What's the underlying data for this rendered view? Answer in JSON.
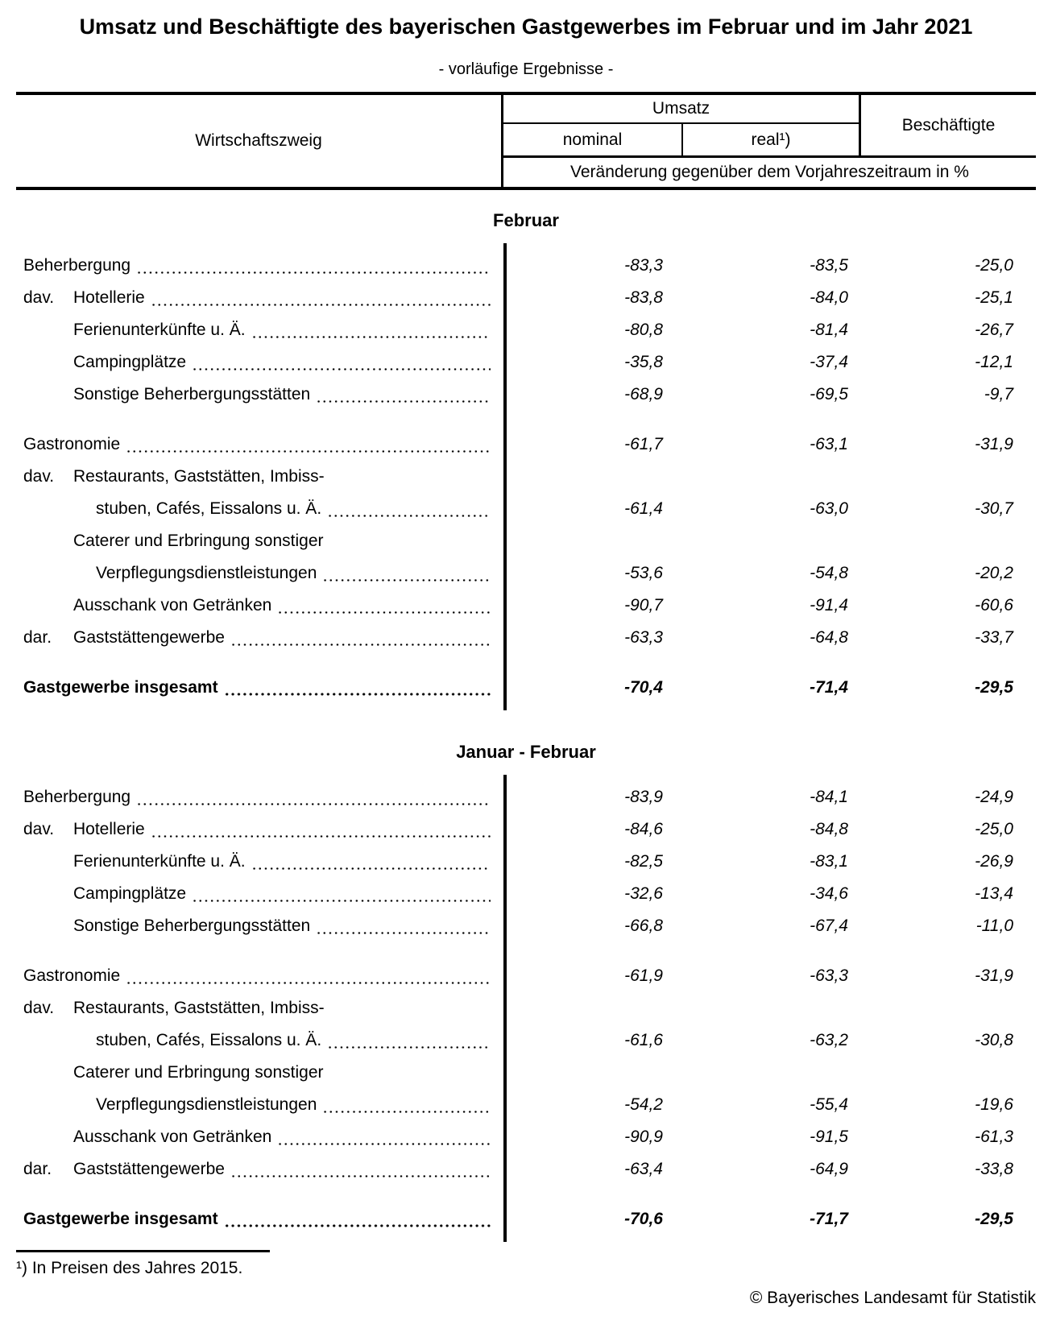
{
  "title": "Umsatz und Beschäftigte des bayerischen Gastgewerbes im Februar und im Jahr 2021",
  "subtitle": "- vorläufige Ergebnisse -",
  "table": {
    "header": {
      "branch": "Wirtschaftszweig",
      "umsatz": "Umsatz",
      "nominal": "nominal",
      "real": "real¹)",
      "beschaeftigte": "Beschäftigte",
      "change_note": "Veränderung gegenüber dem Vorjahreszeitraum in %"
    }
  },
  "sections": [
    {
      "heading": "Februar",
      "rows": [
        {
          "prefix": "",
          "indent": 0,
          "label": "Beherbergung",
          "dots": true,
          "gap": false,
          "bold": false,
          "nominal": "-83,3",
          "real": "-83,5",
          "besch": "-25,0"
        },
        {
          "prefix": "dav.",
          "indent": 1,
          "label": "Hotellerie",
          "dots": true,
          "gap": false,
          "bold": false,
          "nominal": "-83,8",
          "real": "-84,0",
          "besch": "-25,1"
        },
        {
          "prefix": "",
          "indent": 1,
          "label": "Ferienunterkünfte u. Ä.",
          "dots": true,
          "gap": false,
          "bold": false,
          "nominal": "-80,8",
          "real": "-81,4",
          "besch": "-26,7"
        },
        {
          "prefix": "",
          "indent": 1,
          "label": "Campingplätze",
          "dots": true,
          "gap": false,
          "bold": false,
          "nominal": "-35,8",
          "real": "-37,4",
          "besch": "-12,1"
        },
        {
          "prefix": "",
          "indent": 1,
          "label": "Sonstige Beherbergungsstätten",
          "dots": true,
          "gap": false,
          "bold": false,
          "nominal": "-68,9",
          "real": "-69,5",
          "besch": "-9,7"
        },
        {
          "prefix": "",
          "indent": 0,
          "label": "Gastronomie",
          "dots": true,
          "gap": true,
          "bold": false,
          "nominal": "-61,7",
          "real": "-63,1",
          "besch": "-31,9"
        },
        {
          "prefix": "dav.",
          "indent": 1,
          "label": "Restaurants, Gaststätten, Imbiss-",
          "dots": false,
          "gap": false,
          "bold": false,
          "nominal": "",
          "real": "",
          "besch": ""
        },
        {
          "prefix": "",
          "indent": 2,
          "label": "stuben, Cafés, Eissalons u. Ä.",
          "dots": true,
          "gap": false,
          "bold": false,
          "nominal": "-61,4",
          "real": "-63,0",
          "besch": "-30,7"
        },
        {
          "prefix": "",
          "indent": 1,
          "label": "Caterer und Erbringung sonstiger",
          "dots": false,
          "gap": false,
          "bold": false,
          "nominal": "",
          "real": "",
          "besch": ""
        },
        {
          "prefix": "",
          "indent": 2,
          "label": "Verpflegungsdienstleistungen",
          "dots": true,
          "gap": false,
          "bold": false,
          "nominal": "-53,6",
          "real": "-54,8",
          "besch": "-20,2"
        },
        {
          "prefix": "",
          "indent": 1,
          "label": "Ausschank von Getränken",
          "dots": true,
          "gap": false,
          "bold": false,
          "nominal": "-90,7",
          "real": "-91,4",
          "besch": "-60,6"
        },
        {
          "prefix": "dar.",
          "indent": 1,
          "label": "Gaststättengewerbe",
          "dots": true,
          "gap": false,
          "bold": false,
          "nominal": "-63,3",
          "real": "-64,8",
          "besch": "-33,7"
        },
        {
          "prefix": "",
          "indent": 0,
          "label": "Gastgewerbe insgesamt",
          "dots": true,
          "gap": true,
          "bold": true,
          "nominal": "-70,4",
          "real": "-71,4",
          "besch": "-29,5"
        }
      ]
    },
    {
      "heading": "Januar - Februar",
      "rows": [
        {
          "prefix": "",
          "indent": 0,
          "label": "Beherbergung",
          "dots": true,
          "gap": false,
          "bold": false,
          "nominal": "-83,9",
          "real": "-84,1",
          "besch": "-24,9"
        },
        {
          "prefix": "dav.",
          "indent": 1,
          "label": "Hotellerie",
          "dots": true,
          "gap": false,
          "bold": false,
          "nominal": "-84,6",
          "real": "-84,8",
          "besch": "-25,0"
        },
        {
          "prefix": "",
          "indent": 1,
          "label": "Ferienunterkünfte u. Ä.",
          "dots": true,
          "gap": false,
          "bold": false,
          "nominal": "-82,5",
          "real": "-83,1",
          "besch": "-26,9"
        },
        {
          "prefix": "",
          "indent": 1,
          "label": "Campingplätze",
          "dots": true,
          "gap": false,
          "bold": false,
          "nominal": "-32,6",
          "real": "-34,6",
          "besch": "-13,4"
        },
        {
          "prefix": "",
          "indent": 1,
          "label": "Sonstige Beherbergungsstätten",
          "dots": true,
          "gap": false,
          "bold": false,
          "nominal": "-66,8",
          "real": "-67,4",
          "besch": "-11,0"
        },
        {
          "prefix": "",
          "indent": 0,
          "label": "Gastronomie",
          "dots": true,
          "gap": true,
          "bold": false,
          "nominal": "-61,9",
          "real": "-63,3",
          "besch": "-31,9"
        },
        {
          "prefix": "dav.",
          "indent": 1,
          "label": "Restaurants, Gaststätten, Imbiss-",
          "dots": false,
          "gap": false,
          "bold": false,
          "nominal": "",
          "real": "",
          "besch": ""
        },
        {
          "prefix": "",
          "indent": 2,
          "label": "stuben, Cafés, Eissalons u. Ä.",
          "dots": true,
          "gap": false,
          "bold": false,
          "nominal": "-61,6",
          "real": "-63,2",
          "besch": "-30,8"
        },
        {
          "prefix": "",
          "indent": 1,
          "label": "Caterer und Erbringung sonstiger",
          "dots": false,
          "gap": false,
          "bold": false,
          "nominal": "",
          "real": "",
          "besch": ""
        },
        {
          "prefix": "",
          "indent": 2,
          "label": "Verpflegungsdienstleistungen",
          "dots": true,
          "gap": false,
          "bold": false,
          "nominal": "-54,2",
          "real": "-55,4",
          "besch": "-19,6"
        },
        {
          "prefix": "",
          "indent": 1,
          "label": "Ausschank von Getränken",
          "dots": true,
          "gap": false,
          "bold": false,
          "nominal": "-90,9",
          "real": "-91,5",
          "besch": "-61,3"
        },
        {
          "prefix": "dar.",
          "indent": 1,
          "label": "Gaststättengewerbe",
          "dots": true,
          "gap": false,
          "bold": false,
          "nominal": "-63,4",
          "real": "-64,9",
          "besch": "-33,8"
        },
        {
          "prefix": "",
          "indent": 0,
          "label": "Gastgewerbe insgesamt",
          "dots": true,
          "gap": true,
          "bold": true,
          "nominal": "-70,6",
          "real": "-71,7",
          "besch": "-29,5"
        }
      ]
    }
  ],
  "footnote": "¹) In Preisen des Jahres 2015.",
  "copyright": "© Bayerisches Landesamt für Statistik"
}
